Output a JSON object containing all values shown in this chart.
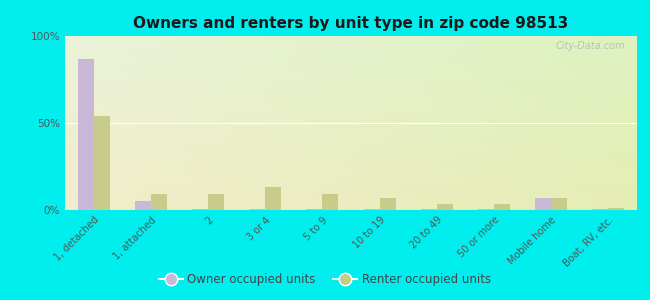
{
  "title": "Owners and renters by unit type in zip code 98513",
  "categories": [
    "1, detached",
    "1, attached",
    "2",
    "3 or 4",
    "5 to 9",
    "10 to 19",
    "20 to 49",
    "50 or more",
    "Mobile home",
    "Boat, RV, etc."
  ],
  "owner_values": [
    87,
    5,
    0.5,
    0.5,
    0.5,
    0.5,
    0.5,
    0.5,
    7,
    0.5
  ],
  "renter_values": [
    54,
    9,
    9,
    13,
    9,
    7,
    3.5,
    3.5,
    7,
    1
  ],
  "owner_color": "#c9b8d8",
  "renter_color": "#c8cc8a",
  "background_fig": "#00eeee",
  "ylim": [
    0,
    100
  ],
  "yticks": [
    0,
    50,
    100
  ],
  "ytick_labels": [
    "0%",
    "50%",
    "100%"
  ],
  "legend_owner": "Owner occupied units",
  "legend_renter": "Renter occupied units",
  "watermark": "City-Data.com",
  "bar_width": 0.28
}
